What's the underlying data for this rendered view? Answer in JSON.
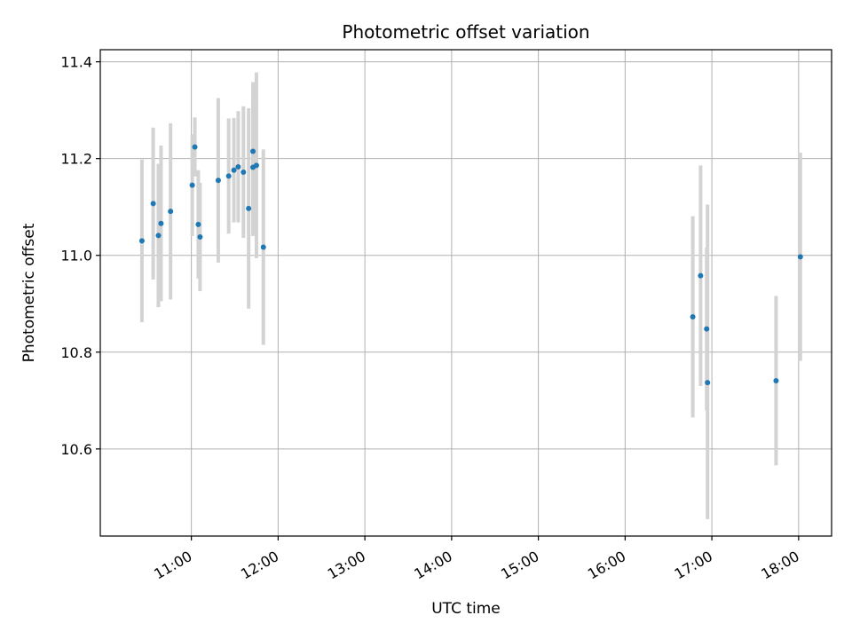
{
  "chart_data": {
    "type": "scatter",
    "title": "Photometric offset variation",
    "xlabel": "UTC time",
    "ylabel": "Photometric offset",
    "x_unit": "hours (UTC)",
    "xlim": [
      9.95,
      18.38
    ],
    "ylim": [
      10.42,
      11.425
    ],
    "grid": true,
    "x_ticks": [
      {
        "value": 11,
        "label": "11:00"
      },
      {
        "value": 12,
        "label": "12:00"
      },
      {
        "value": 13,
        "label": "13:00"
      },
      {
        "value": 14,
        "label": "14:00"
      },
      {
        "value": 15,
        "label": "15:00"
      },
      {
        "value": 16,
        "label": "16:00"
      },
      {
        "value": 17,
        "label": "17:00"
      },
      {
        "value": 18,
        "label": "18:00"
      }
    ],
    "y_ticks": [
      {
        "value": 10.6,
        "label": "10.6"
      },
      {
        "value": 10.8,
        "label": "10.8"
      },
      {
        "value": 11.0,
        "label": "11.0"
      },
      {
        "value": 11.2,
        "label": "11.2"
      },
      {
        "value": 11.4,
        "label": "11.4"
      }
    ],
    "colors": {
      "point": "#1f77b4",
      "errorbar": "#d3d3d3",
      "grid": "#b0b0b0",
      "axis": "#000000"
    },
    "points": [
      {
        "x": 10.43,
        "y": 11.03,
        "ylo": 10.862,
        "yhi": 11.198
      },
      {
        "x": 10.56,
        "y": 11.107,
        "ylo": 10.95,
        "yhi": 11.264
      },
      {
        "x": 10.62,
        "y": 11.041,
        "ylo": 10.893,
        "yhi": 11.189
      },
      {
        "x": 10.65,
        "y": 11.066,
        "ylo": 10.905,
        "yhi": 11.227
      },
      {
        "x": 10.76,
        "y": 11.091,
        "ylo": 10.909,
        "yhi": 11.273
      },
      {
        "x": 11.01,
        "y": 11.145,
        "ylo": 11.04,
        "yhi": 11.25
      },
      {
        "x": 11.04,
        "y": 11.224,
        "ylo": 11.163,
        "yhi": 11.285
      },
      {
        "x": 11.08,
        "y": 11.064,
        "ylo": 10.952,
        "yhi": 11.176
      },
      {
        "x": 11.1,
        "y": 11.038,
        "ylo": 10.926,
        "yhi": 11.15
      },
      {
        "x": 11.31,
        "y": 11.155,
        "ylo": 10.985,
        "yhi": 11.325
      },
      {
        "x": 11.43,
        "y": 11.164,
        "ylo": 11.045,
        "yhi": 11.283
      },
      {
        "x": 11.49,
        "y": 11.176,
        "ylo": 11.068,
        "yhi": 11.284
      },
      {
        "x": 11.54,
        "y": 11.183,
        "ylo": 11.068,
        "yhi": 11.298
      },
      {
        "x": 11.6,
        "y": 11.172,
        "ylo": 11.036,
        "yhi": 11.308
      },
      {
        "x": 11.66,
        "y": 11.097,
        "ylo": 10.89,
        "yhi": 11.304
      },
      {
        "x": 11.71,
        "y": 11.215,
        "ylo": 11.07,
        "yhi": 11.358
      },
      {
        "x": 11.71,
        "y": 11.182,
        "ylo": 11.04,
        "yhi": 11.324
      },
      {
        "x": 11.75,
        "y": 11.186,
        "ylo": 10.994,
        "yhi": 11.378
      },
      {
        "x": 11.83,
        "y": 11.017,
        "ylo": 10.815,
        "yhi": 11.219
      },
      {
        "x": 16.78,
        "y": 10.873,
        "ylo": 10.665,
        "yhi": 11.081
      },
      {
        "x": 16.87,
        "y": 10.958,
        "ylo": 10.73,
        "yhi": 11.186
      },
      {
        "x": 16.94,
        "y": 10.848,
        "ylo": 10.68,
        "yhi": 11.016
      },
      {
        "x": 16.95,
        "y": 10.737,
        "ylo": 10.455,
        "yhi": 11.105
      },
      {
        "x": 17.74,
        "y": 10.741,
        "ylo": 10.566,
        "yhi": 10.916
      },
      {
        "x": 18.02,
        "y": 10.997,
        "ylo": 10.782,
        "yhi": 11.212
      }
    ]
  }
}
